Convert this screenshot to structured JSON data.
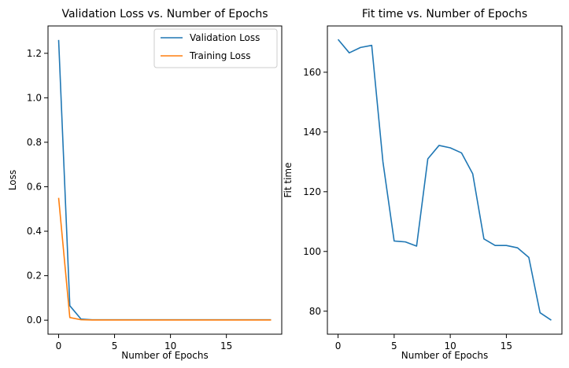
{
  "chart_data": [
    {
      "type": "line",
      "title": "Validation Loss vs. Number of Epochs",
      "xlabel": "Number of Epochs",
      "ylabel": "Loss",
      "xlim": [
        -0.95,
        19.95
      ],
      "ylim": [
        -0.063,
        1.323
      ],
      "xticks": [
        0,
        5,
        10,
        15
      ],
      "yticks": [
        0.0,
        0.2,
        0.4,
        0.6,
        0.8,
        1.0,
        1.2
      ],
      "ytick_decimals": 1,
      "grid": false,
      "legend": "top-right",
      "x": [
        0,
        1,
        2,
        3,
        4,
        5,
        6,
        7,
        8,
        9,
        10,
        11,
        12,
        13,
        14,
        15,
        16,
        17,
        18,
        19
      ],
      "series": [
        {
          "name": "Validation Loss",
          "color": "#1f77b4",
          "values": [
            1.26,
            0.065,
            0.005,
            0.002,
            0.002,
            0.002,
            0.002,
            0.002,
            0.002,
            0.002,
            0.002,
            0.002,
            0.002,
            0.002,
            0.002,
            0.002,
            0.002,
            0.002,
            0.002,
            0.002
          ]
        },
        {
          "name": "Training Loss",
          "color": "#ff7f0e",
          "values": [
            0.55,
            0.012,
            0.002,
            0.001,
            0.001,
            0.001,
            0.001,
            0.001,
            0.001,
            0.001,
            0.001,
            0.001,
            0.001,
            0.001,
            0.001,
            0.001,
            0.001,
            0.001,
            0.001,
            0.001
          ]
        }
      ]
    },
    {
      "type": "line",
      "title": "Fit time vs. Number of Epochs",
      "xlabel": "Number of Epochs",
      "ylabel": "Fit time",
      "xlim": [
        -0.95,
        19.95
      ],
      "ylim": [
        72.3,
        175.5
      ],
      "xticks": [
        0,
        5,
        10,
        15
      ],
      "yticks": [
        80,
        100,
        120,
        140,
        160
      ],
      "ytick_decimals": 0,
      "grid": false,
      "legend": "none",
      "x": [
        0,
        1,
        2,
        3,
        4,
        5,
        6,
        7,
        8,
        9,
        10,
        11,
        12,
        13,
        14,
        15,
        16,
        17,
        18,
        19
      ],
      "series": [
        {
          "name": "",
          "color": "#1f77b4",
          "values": [
            171.0,
            166.5,
            168.3,
            169.0,
            130.0,
            103.5,
            103.2,
            101.8,
            131.0,
            135.5,
            134.7,
            133.0,
            126.0,
            104.2,
            102.0,
            102.0,
            101.2,
            98.0,
            79.5,
            77.0
          ]
        }
      ]
    }
  ]
}
